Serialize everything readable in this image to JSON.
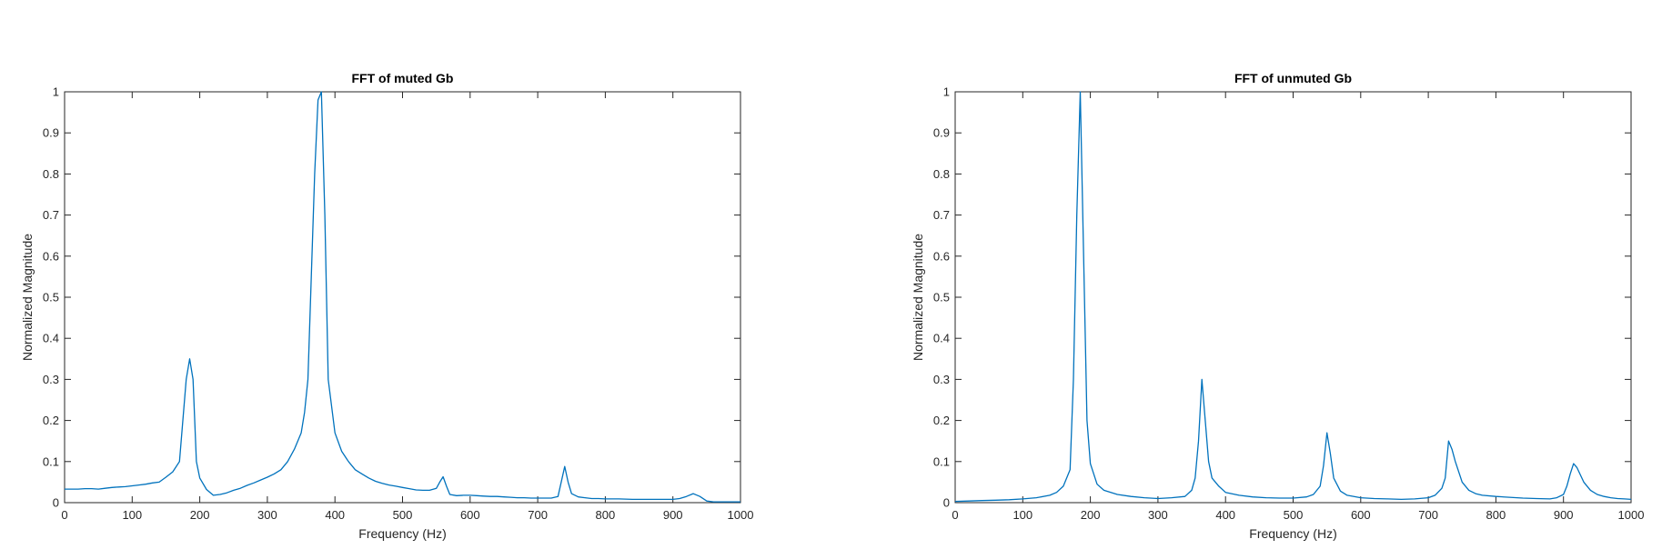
{
  "chart_data": [
    {
      "type": "line",
      "title": "FFT of muted Gb",
      "xlabel": "Frequency (Hz)",
      "ylabel": "Normalized Magnitude",
      "xlim": [
        0,
        1000
      ],
      "ylim": [
        0,
        1
      ],
      "xticks": [
        "0",
        "100",
        "200",
        "300",
        "400",
        "500",
        "600",
        "700",
        "800",
        "900",
        "1000"
      ],
      "yticks": [
        "0",
        "0.1",
        "0.2",
        "0.3",
        "0.4",
        "0.5",
        "0.6",
        "0.7",
        "0.8",
        "0.9",
        "1"
      ],
      "grid": false,
      "line_color": "#0072bd",
      "x": [
        0,
        10,
        20,
        30,
        40,
        50,
        60,
        70,
        80,
        90,
        100,
        110,
        120,
        130,
        140,
        150,
        160,
        170,
        180,
        185,
        190,
        195,
        200,
        210,
        220,
        230,
        240,
        250,
        260,
        270,
        280,
        290,
        300,
        310,
        320,
        330,
        340,
        350,
        355,
        360,
        365,
        370,
        375,
        380,
        385,
        390,
        400,
        410,
        420,
        430,
        440,
        450,
        460,
        470,
        480,
        490,
        500,
        510,
        520,
        530,
        540,
        550,
        555,
        560,
        565,
        570,
        580,
        590,
        600,
        610,
        620,
        630,
        640,
        650,
        660,
        670,
        680,
        690,
        700,
        710,
        720,
        730,
        740,
        745,
        750,
        760,
        770,
        780,
        790,
        800,
        820,
        840,
        860,
        880,
        900,
        910,
        920,
        930,
        940,
        950,
        960,
        1000
      ],
      "y": [
        0.033,
        0.033,
        0.033,
        0.034,
        0.034,
        0.033,
        0.035,
        0.037,
        0.038,
        0.039,
        0.041,
        0.043,
        0.045,
        0.048,
        0.05,
        0.062,
        0.075,
        0.1,
        0.3,
        0.35,
        0.3,
        0.1,
        0.06,
        0.032,
        0.018,
        0.02,
        0.024,
        0.03,
        0.035,
        0.042,
        0.048,
        0.055,
        0.062,
        0.07,
        0.08,
        0.1,
        0.13,
        0.17,
        0.22,
        0.3,
        0.55,
        0.8,
        0.98,
        1.0,
        0.7,
        0.3,
        0.17,
        0.125,
        0.1,
        0.08,
        0.07,
        0.06,
        0.052,
        0.047,
        0.043,
        0.04,
        0.037,
        0.034,
        0.031,
        0.03,
        0.03,
        0.035,
        0.05,
        0.063,
        0.04,
        0.02,
        0.017,
        0.018,
        0.018,
        0.017,
        0.016,
        0.015,
        0.015,
        0.014,
        0.013,
        0.012,
        0.012,
        0.011,
        0.011,
        0.011,
        0.011,
        0.015,
        0.088,
        0.05,
        0.022,
        0.014,
        0.012,
        0.01,
        0.01,
        0.009,
        0.009,
        0.008,
        0.008,
        0.008,
        0.008,
        0.01,
        0.015,
        0.022,
        0.015,
        0.004,
        0.002,
        0.002
      ]
    },
    {
      "type": "line",
      "title": "FFT of unmuted Gb",
      "xlabel": "Frequency (Hz)",
      "ylabel": "Normalized Magnitude",
      "xlim": [
        0,
        1000
      ],
      "ylim": [
        0,
        1
      ],
      "xticks": [
        "0",
        "100",
        "200",
        "300",
        "400",
        "500",
        "600",
        "700",
        "800",
        "900",
        "1000"
      ],
      "yticks": [
        "0",
        "0.1",
        "0.2",
        "0.3",
        "0.4",
        "0.5",
        "0.6",
        "0.7",
        "0.8",
        "0.9",
        "1"
      ],
      "grid": false,
      "line_color": "#0072bd",
      "x": [
        0,
        20,
        40,
        60,
        80,
        100,
        120,
        140,
        150,
        160,
        170,
        175,
        180,
        185,
        190,
        195,
        200,
        210,
        220,
        240,
        260,
        280,
        300,
        320,
        340,
        350,
        355,
        360,
        365,
        370,
        375,
        380,
        390,
        400,
        420,
        440,
        460,
        480,
        500,
        520,
        530,
        540,
        545,
        550,
        555,
        560,
        570,
        580,
        600,
        620,
        640,
        660,
        680,
        700,
        710,
        720,
        725,
        730,
        735,
        740,
        750,
        760,
        770,
        780,
        800,
        820,
        840,
        860,
        880,
        890,
        900,
        905,
        910,
        915,
        920,
        930,
        940,
        950,
        960,
        970,
        980,
        990,
        1000
      ],
      "y": [
        0.003,
        0.004,
        0.005,
        0.006,
        0.007,
        0.009,
        0.012,
        0.018,
        0.025,
        0.04,
        0.08,
        0.3,
        0.7,
        1.0,
        0.6,
        0.2,
        0.095,
        0.045,
        0.03,
        0.02,
        0.015,
        0.012,
        0.01,
        0.012,
        0.015,
        0.03,
        0.06,
        0.15,
        0.3,
        0.2,
        0.1,
        0.06,
        0.04,
        0.025,
        0.018,
        0.014,
        0.012,
        0.011,
        0.011,
        0.014,
        0.02,
        0.04,
        0.09,
        0.17,
        0.12,
        0.06,
        0.028,
        0.018,
        0.012,
        0.01,
        0.009,
        0.008,
        0.009,
        0.012,
        0.018,
        0.035,
        0.06,
        0.15,
        0.13,
        0.1,
        0.05,
        0.03,
        0.022,
        0.018,
        0.015,
        0.013,
        0.011,
        0.01,
        0.009,
        0.012,
        0.02,
        0.04,
        0.07,
        0.095,
        0.085,
        0.05,
        0.03,
        0.02,
        0.015,
        0.012,
        0.01,
        0.009,
        0.008
      ]
    }
  ]
}
